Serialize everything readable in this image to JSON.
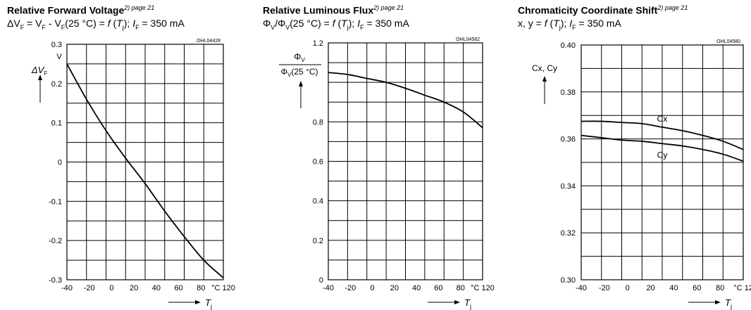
{
  "charts": [
    {
      "title": "Relative Forward Voltage",
      "title_sup": "2) page 21",
      "subtitle_parts": [
        "ΔV",
        "F",
        " = V",
        "F",
        " - V",
        "F",
        "(25 °C) = ",
        "f",
        " (",
        "T",
        "j",
        "); ",
        "I",
        "F",
        " = 350 mA"
      ],
      "code": "OHL04428",
      "y_label": "ΔV",
      "y_label_sub": "F",
      "y_unit": "V",
      "x_unit": "°C",
      "x_label": "T",
      "x_label_sub": "j"
    },
    {
      "title": "Relative Luminous Flux",
      "title_sup": "2) page 21",
      "subtitle_parts": [
        "Φ",
        "V",
        "/Φ",
        "V",
        "(25 °C) = ",
        "f",
        " (",
        "T",
        "j",
        "); ",
        "I",
        "F",
        " = 350 mA"
      ],
      "code": "OHL04582",
      "y_label_num": "Φ",
      "y_label_num_sub": "V",
      "y_label_den": "Φ",
      "y_label_den_sub": "V",
      "y_label_den_tail": "(25 °C)",
      "x_unit": "°C",
      "x_label": "T",
      "x_label_sub": "j"
    },
    {
      "title": "Chromaticity Coordinate Shift",
      "title_sup": "2) page 21",
      "subtitle_parts": [
        "x, y = ",
        "f",
        " (",
        "T",
        "j",
        "); ",
        "I",
        "F",
        " = 350 mA"
      ],
      "code": "OHL04580",
      "y_label": "Cx, Cy",
      "x_unit": "°C",
      "x_label": "T",
      "x_label_sub": "j"
    }
  ],
  "chart_data": [
    {
      "type": "line",
      "xlim": [
        -40,
        120
      ],
      "ylim": [
        -0.3,
        0.3
      ],
      "grid": true,
      "x_ticks": [
        "-40",
        "-20",
        "0",
        "20",
        "40",
        "60",
        "80",
        "°C 120"
      ],
      "y_ticks": [
        "0.3",
        "0.2",
        "0.1",
        "0",
        "-0.1",
        "-0.2",
        "-0.3"
      ],
      "series": [
        {
          "x": [
            -40,
            -20,
            0,
            20,
            40,
            60,
            80,
            100,
            120
          ],
          "y": [
            0.25,
            0.16,
            0.08,
            0.01,
            -0.055,
            -0.125,
            -0.19,
            -0.25,
            -0.295
          ]
        }
      ]
    },
    {
      "type": "line",
      "xlim": [
        -40,
        120
      ],
      "ylim": [
        0,
        1.2
      ],
      "grid": true,
      "x_ticks": [
        "-40",
        "-20",
        "0",
        "20",
        "40",
        "60",
        "80",
        "°C 120"
      ],
      "y_ticks": [
        "1.2",
        "0.8",
        "0.6",
        "0.4",
        "0.2",
        "0"
      ],
      "series": [
        {
          "x": [
            -40,
            -20,
            0,
            20,
            40,
            60,
            80,
            100,
            120
          ],
          "y": [
            1.05,
            1.04,
            1.02,
            1.0,
            0.97,
            0.935,
            0.9,
            0.85,
            0.77
          ]
        }
      ]
    },
    {
      "type": "line",
      "xlim": [
        -40,
        120
      ],
      "ylim": [
        0.3,
        0.4
      ],
      "grid": true,
      "x_ticks": [
        "-40",
        "-20",
        "0",
        "20",
        "40",
        "60",
        "80",
        "°C 12"
      ],
      "y_ticks": [
        "0.40",
        "0.38",
        "0.36",
        "0.34",
        "0.32",
        "0.30"
      ],
      "series": [
        {
          "name": "Cx",
          "x": [
            -40,
            -20,
            0,
            20,
            40,
            60,
            80,
            100,
            120
          ],
          "y": [
            0.3675,
            0.3675,
            0.367,
            0.3665,
            0.365,
            0.3635,
            0.3615,
            0.359,
            0.3555
          ]
        },
        {
          "name": "Cy",
          "x": [
            -40,
            -20,
            0,
            20,
            40,
            60,
            80,
            100,
            120
          ],
          "y": [
            0.3615,
            0.3605,
            0.3595,
            0.359,
            0.358,
            0.357,
            0.3555,
            0.3535,
            0.3505
          ]
        }
      ]
    }
  ]
}
